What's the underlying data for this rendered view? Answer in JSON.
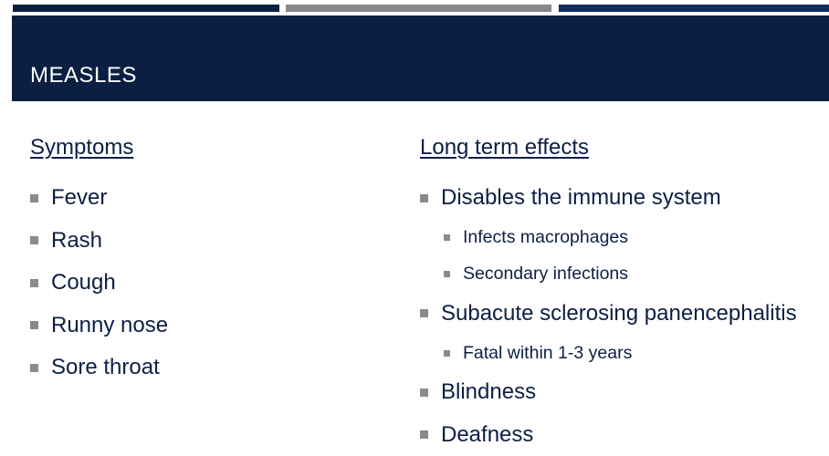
{
  "colors": {
    "bar1": "#0b1f42",
    "bar2": "#87878a",
    "bar3": "#0d2f63",
    "header": "#0b1f42",
    "text": "#0c1f44",
    "bullet": "#8a8a8e"
  },
  "title": "MEASLES",
  "left": {
    "heading": "Symptoms",
    "items": [
      "Fever",
      "Rash",
      "Cough",
      "Runny nose",
      "Sore throat"
    ]
  },
  "right": {
    "heading": "Long term effects",
    "items": [
      {
        "text": "Disables the immune system",
        "level": 1
      },
      {
        "text": "Infects macrophages",
        "level": 2
      },
      {
        "text": "Secondary infections",
        "level": 2
      },
      {
        "text": "Subacute sclerosing panencephalitis",
        "level": 1
      },
      {
        "text": "Fatal within 1-3 years",
        "level": 2
      },
      {
        "text": "Blindness",
        "level": 1
      },
      {
        "text": "Deafness",
        "level": 1
      }
    ]
  }
}
